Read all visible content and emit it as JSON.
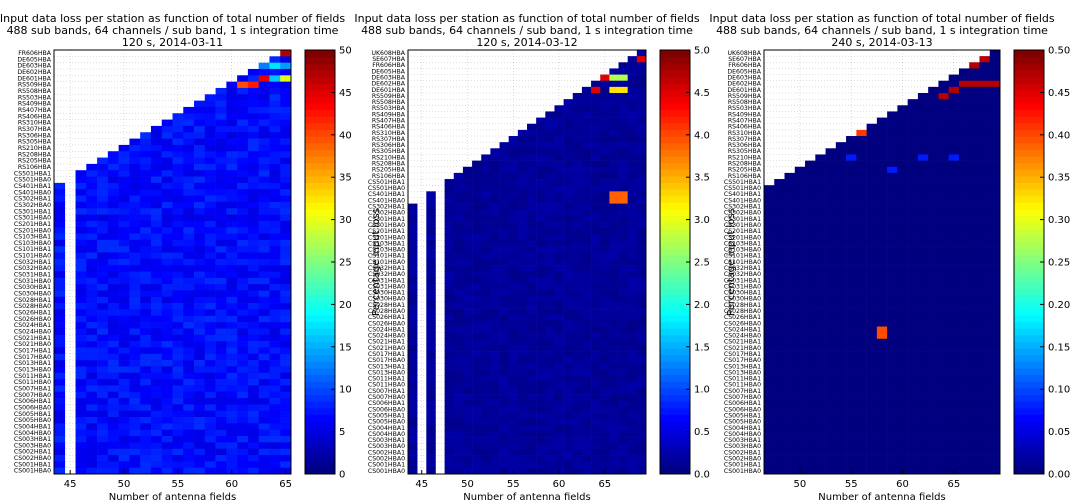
{
  "chart_data": [
    {
      "type": "heatmap",
      "title_lines": [
        "Input data loss per station as function of total number of fields",
        "488 sub bands, 64 channels / sub band, 1 s integration time",
        "120 s, 2014-03-11"
      ],
      "xlabel": "Number of antenna fields",
      "xlim": [
        43.5,
        65.5
      ],
      "xticks": [
        45,
        50,
        55,
        60,
        65
      ],
      "stations": [
        "FR606HBA",
        "DE605HBA",
        "DE603HBA",
        "DE602HBA",
        "DE601HBA",
        "RS509HBA",
        "RS508HBA",
        "RS503HBA",
        "RS409HBA",
        "RS407HBA",
        "RS406HBA",
        "RS310HBA",
        "RS307HBA",
        "RS306HBA",
        "RS305HBA",
        "RS210HBA",
        "RS208HBA",
        "RS205HBA",
        "RS106HBA",
        "CS501HBA1",
        "CS501HBA0",
        "CS401HBA1",
        "CS401HBA0",
        "CS302HBA1",
        "CS302HBA0",
        "CS301HBA1",
        "CS301HBA0",
        "CS201HBA1",
        "CS201HBA0",
        "CS103HBA1",
        "CS103HBA0",
        "CS101HBA1",
        "CS101HBA0",
        "CS032HBA1",
        "CS032HBA0",
        "CS031HBA1",
        "CS031HBA0",
        "CS030HBA1",
        "CS030HBA0",
        "CS028HBA1",
        "CS028HBA0",
        "CS026HBA1",
        "CS026HBA0",
        "CS024HBA1",
        "CS024HBA0",
        "CS021HBA1",
        "CS021HBA0",
        "CS017HBA1",
        "CS017HBA0",
        "CS013HBA1",
        "CS013HBA0",
        "CS011HBA1",
        "CS011HBA0",
        "CS007HBA1",
        "CS007HBA0",
        "CS006HBA1",
        "CS006HBA0",
        "CS005HBA1",
        "CS005HBA0",
        "CS004HBA1",
        "CS004HBA0",
        "CS003HBA1",
        "CS003HBA0",
        "CS002HBA1",
        "CS002HBA0",
        "CS001HBA1",
        "CS001HBA0"
      ],
      "missing_columns": [
        45
      ],
      "base_level": 0.12,
      "noise": 0.07,
      "hot_cells": [
        [
          65,
          0,
          0.95
        ],
        [
          63,
          2,
          0.25
        ],
        [
          64,
          2,
          0.35
        ],
        [
          65,
          2,
          0.28
        ],
        [
          65,
          4,
          0.6
        ],
        [
          64,
          4,
          0.32
        ],
        [
          61,
          5,
          0.8
        ],
        [
          62,
          5,
          0.85
        ],
        [
          63,
          4,
          0.9
        ]
      ],
      "colorbar": {
        "label": "Percentage input loss",
        "min": 0,
        "max": 50,
        "ticks": [
          0,
          5,
          10,
          15,
          20,
          25,
          30,
          35,
          40,
          45,
          50
        ]
      }
    },
    {
      "type": "heatmap",
      "title_lines": [
        "Input data loss per station as function of total number of fields",
        "488 sub bands, 64 channels / sub band, 1 s integration time",
        "120 s, 2014-03-12"
      ],
      "xlabel": "Number of antenna fields",
      "xlim": [
        43.5,
        69.5
      ],
      "xticks": [
        45,
        50,
        55,
        60,
        65
      ],
      "stations": [
        "UK608HBA",
        "SE607HBA",
        "FR606HBA",
        "DE605HBA",
        "DE603HBA",
        "DE602HBA",
        "DE601HBA",
        "RS509HBA",
        "RS508HBA",
        "RS503HBA",
        "RS409HBA",
        "RS407HBA",
        "RS406HBA",
        "RS310HBA",
        "RS307HBA",
        "RS306HBA",
        "RS305HBA",
        "RS210HBA",
        "RS208HBA",
        "RS205HBA",
        "RS106HBA",
        "CS501HBA1",
        "CS501HBA0",
        "CS401HBA1",
        "CS401HBA0",
        "CS302HBA1",
        "CS302HBA0",
        "CS301HBA1",
        "CS301HBA0",
        "CS201HBA1",
        "CS201HBA0",
        "CS103HBA1",
        "CS103HBA0",
        "CS101HBA1",
        "CS101HBA0",
        "CS032HBA1",
        "CS032HBA0",
        "CS031HBA1",
        "CS031HBA0",
        "CS030HBA1",
        "CS030HBA0",
        "CS028HBA1",
        "CS028HBA0",
        "CS026HBA1",
        "CS026HBA0",
        "CS024HBA1",
        "CS024HBA0",
        "CS021HBA1",
        "CS021HBA0",
        "CS017HBA1",
        "CS017HBA0",
        "CS013HBA1",
        "CS013HBA0",
        "CS011HBA1",
        "CS011HBA0",
        "CS007HBA1",
        "CS007HBA0",
        "CS006HBA1",
        "CS006HBA0",
        "CS005HBA1",
        "CS005HBA0",
        "CS004HBA1",
        "CS004HBA0",
        "CS003HBA1",
        "CS003HBA0",
        "CS002HBA1",
        "CS002HBA0",
        "CS001HBA1",
        "CS001HBA0"
      ],
      "missing_columns": [
        45,
        47
      ],
      "base_level": 0.02,
      "noise": 0.03,
      "hot_cells": [
        [
          66,
          24,
          0.78
        ],
        [
          67,
          24,
          0.78
        ],
        [
          66,
          23,
          0.78
        ],
        [
          67,
          23,
          0.78
        ],
        [
          66,
          4,
          0.55
        ],
        [
          67,
          4,
          0.55
        ],
        [
          66,
          6,
          0.65
        ],
        [
          67,
          6,
          0.65
        ],
        [
          66,
          2,
          0.9
        ],
        [
          69,
          1,
          0.9
        ],
        [
          65,
          4,
          0.9
        ],
        [
          64,
          6,
          0.9
        ]
      ],
      "colorbar": {
        "label": "Percentage input loss",
        "min": 0,
        "max": 5,
        "ticks": [
          0.0,
          0.5,
          1.0,
          1.5,
          2.0,
          2.5,
          3.0,
          3.5,
          4.0,
          4.5,
          5.0
        ]
      }
    },
    {
      "type": "heatmap",
      "title_lines": [
        "Input data loss per station as function of total number of fields",
        "488 sub bands, 64 channels / sub band, 1 s integration time",
        "240 s, 2014-03-13"
      ],
      "xlabel": "Number of antenna fields",
      "xlim": [
        46.5,
        69.5
      ],
      "xticks": [
        50,
        55,
        60,
        65
      ],
      "stations": [
        "UK608HBA",
        "SE607HBA",
        "FR606HBA",
        "DE605HBA",
        "DE603HBA",
        "DE602HBA",
        "DE601HBA",
        "RS509HBA",
        "RS508HBA",
        "RS503HBA",
        "RS409HBA",
        "RS407HBA",
        "RS406HBA",
        "RS310HBA",
        "RS307HBA",
        "RS306HBA",
        "RS305HBA",
        "RS210HBA",
        "RS208HBA",
        "RS205HBA",
        "RS106HBA",
        "CS501HBA1",
        "CS501HBA0",
        "CS401HBA1",
        "CS401HBA0",
        "CS302HBA1",
        "CS302HBA0",
        "CS301HBA1",
        "CS301HBA0",
        "CS201HBA1",
        "CS201HBA0",
        "CS103HBA1",
        "CS103HBA0",
        "CS101HBA1",
        "CS101HBA0",
        "CS032HBA1",
        "CS032HBA0",
        "CS031HBA1",
        "CS031HBA0",
        "CS030HBA1",
        "CS030HBA0",
        "CS028HBA1",
        "CS028HBA0",
        "CS026HBA1",
        "CS026HBA0",
        "CS024HBA1",
        "CS024HBA0",
        "CS021HBA1",
        "CS021HBA0",
        "CS017HBA1",
        "CS017HBA0",
        "CS013HBA1",
        "CS013HBA0",
        "CS011HBA1",
        "CS011HBA0",
        "CS007HBA1",
        "CS007HBA0",
        "CS006HBA1",
        "CS006HBA0",
        "CS005HBA1",
        "CS005HBA0",
        "CS004HBA1",
        "CS004HBA0",
        "CS003HBA1",
        "CS003HBA0",
        "CS002HBA1",
        "CS002HBA0",
        "CS001HBA1",
        "CS001HBA0"
      ],
      "missing_columns": [],
      "base_level": 0.0,
      "noise": 0.0,
      "hot_cells": [
        [
          56,
          13,
          0.82
        ],
        [
          58,
          45,
          0.8
        ],
        [
          58,
          46,
          0.8
        ],
        [
          55,
          17,
          0.15
        ],
        [
          62,
          17,
          0.15
        ],
        [
          65,
          17,
          0.15
        ],
        [
          59,
          19,
          0.15
        ],
        [
          68,
          5,
          0.95
        ],
        [
          69,
          5,
          0.95
        ],
        [
          67,
          5,
          0.95
        ],
        [
          66,
          5,
          0.95
        ],
        [
          65,
          6,
          0.95
        ],
        [
          64,
          7,
          0.95
        ],
        [
          67,
          2,
          0.95
        ],
        [
          68,
          1,
          0.95
        ]
      ],
      "colorbar": {
        "label": "Percentage input loss",
        "min": 0,
        "max": 0.5,
        "ticks": [
          0.0,
          0.05,
          0.1,
          0.15,
          0.2,
          0.25,
          0.3,
          0.35,
          0.4,
          0.45,
          0.5
        ]
      }
    }
  ]
}
